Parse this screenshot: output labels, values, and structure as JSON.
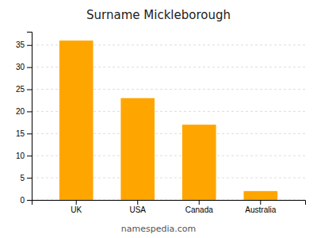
{
  "chart_data": {
    "type": "bar",
    "title": "Surname Mickleborough",
    "categories": [
      "UK",
      "USA",
      "Canada",
      "Australia"
    ],
    "values": [
      36,
      23,
      17,
      2
    ],
    "color": "#FFA500",
    "ylim": [
      0,
      38
    ],
    "yticks": [
      0,
      5,
      10,
      15,
      20,
      25,
      30,
      35
    ],
    "grid": true,
    "annotations": [
      "namespedia.com"
    ]
  }
}
